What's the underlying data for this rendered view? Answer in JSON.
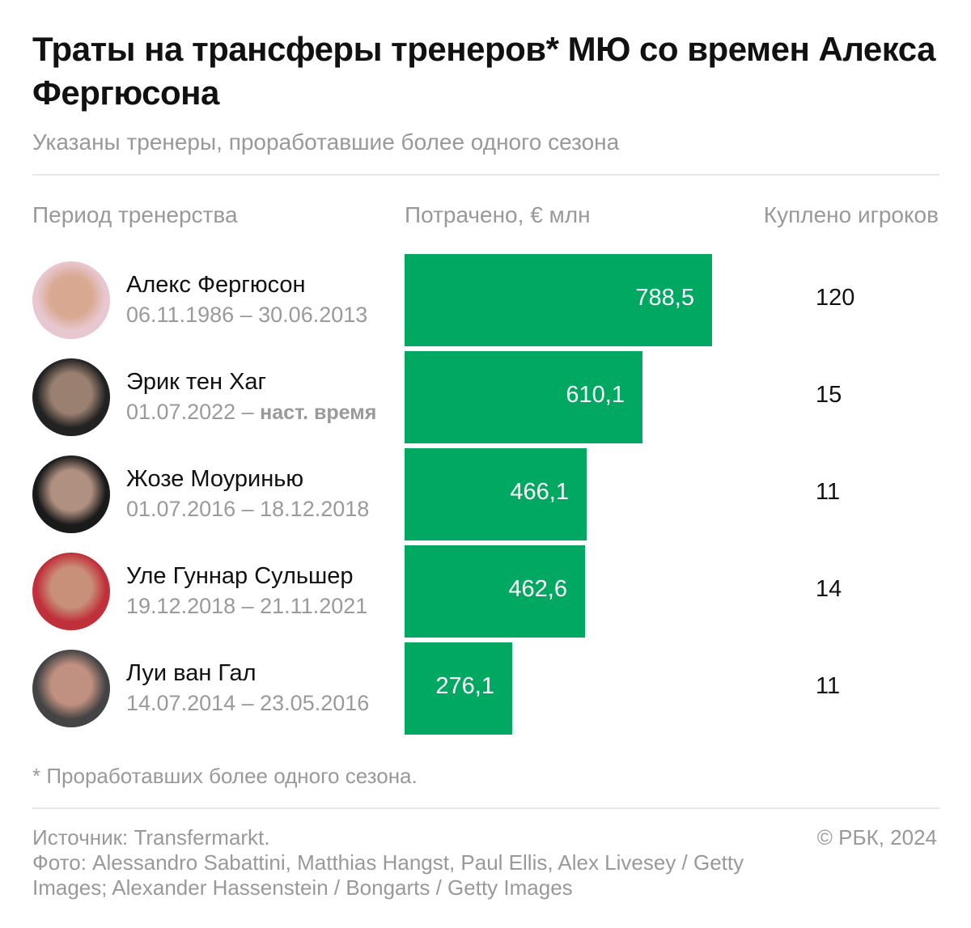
{
  "title": "Траты на трансферы тренеров* МЮ со времен Алекса Фергюсона",
  "subtitle": "Указаны тренеры, проработавшие более одного сезона",
  "columns": {
    "period": "Период тренерства",
    "spent": "Потрачено, € млн",
    "players": "Куплено игроков"
  },
  "chart_data": {
    "type": "bar",
    "orientation": "horizontal",
    "title": "Траты на трансферы тренеров* МЮ со времен Алекса Фергюсона",
    "categories": [
      "Алекс Фергюсон",
      "Эрик тен Хаг",
      "Жозе Моуринью",
      "Уле Гуннар Сульшер",
      "Луи ван Гал"
    ],
    "values": [
      788.5,
      610.1,
      466.1,
      462.6,
      276.1
    ],
    "value_labels": [
      "788,5",
      "610,1",
      "466,1",
      "462,6",
      "276,1"
    ],
    "xlabel": "Потрачено, € млн",
    "grid": false,
    "bar_color": "#00a862"
  },
  "rows": [
    {
      "name": "Алекс Фергюсон",
      "dates": "06.11.1986 – 30.06.2013",
      "dates_bold": "",
      "players": "120",
      "avatar_colors": [
        "#e8c8d0",
        "#d8a890"
      ]
    },
    {
      "name": "Эрик тен Хаг",
      "dates": "01.07.2022 – ",
      "dates_bold": "наст. время",
      "players": "15",
      "avatar_colors": [
        "#222",
        "#9a8070"
      ]
    },
    {
      "name": "Жозе Моуринью",
      "dates": "01.07.2016 – 18.12.2018",
      "dates_bold": "",
      "players": "11",
      "avatar_colors": [
        "#1a1a1a",
        "#b09080"
      ]
    },
    {
      "name": "Уле Гуннар Сульшер",
      "dates": "19.12.2018 – 21.11.2021",
      "dates_bold": "",
      "players": "14",
      "avatar_colors": [
        "#c0303a",
        "#c89078"
      ]
    },
    {
      "name": "Луи ван Гал",
      "dates": "14.07.2014 – 23.05.2016",
      "dates_bold": "",
      "players": "11",
      "avatar_colors": [
        "#444",
        "#c09080"
      ]
    }
  ],
  "footnote": "* Проработавших более одного сезона.",
  "source": "Источник: Transfermarkt.",
  "photo": "Фото: Alessandro Sabattini, Matthias Hangst, Paul Ellis, Alex Livesey / Getty Images; Alexander Hassenstein / Bongarts / Getty Images",
  "copyright": "© РБК, 2024"
}
